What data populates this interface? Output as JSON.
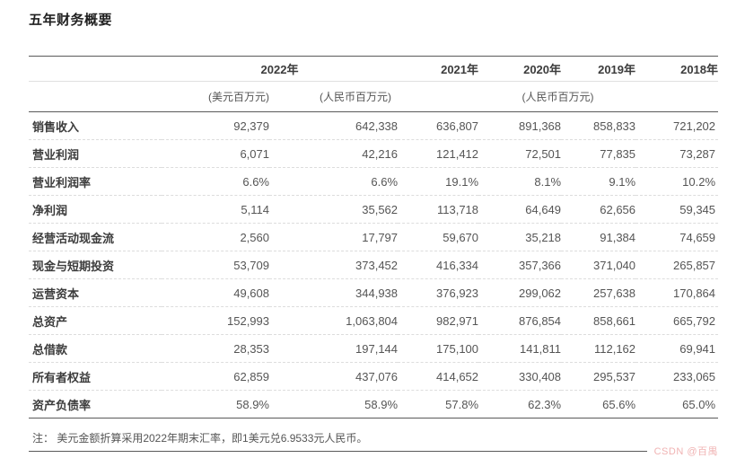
{
  "page": {
    "title": "五年财务概要"
  },
  "table": {
    "year_headers": [
      {
        "label": "2022年"
      },
      {
        "label": "2021年"
      },
      {
        "label": "2020年"
      },
      {
        "label": "2019年"
      },
      {
        "label": "2018年"
      }
    ],
    "unit_headers": {
      "usd": "(美元百万元)",
      "rmb_2022": "(人民币百万元)",
      "rmb_prior": "(人民币百万元)"
    },
    "rows": [
      {
        "label": "销售收入",
        "values": [
          "92,379",
          "642,338",
          "636,807",
          "891,368",
          "858,833",
          "721,202"
        ]
      },
      {
        "label": "营业利润",
        "values": [
          "6,071",
          "42,216",
          "121,412",
          "72,501",
          "77,835",
          "73,287"
        ]
      },
      {
        "label": "营业利润率",
        "values": [
          "6.6%",
          "6.6%",
          "19.1%",
          "8.1%",
          "9.1%",
          "10.2%"
        ]
      },
      {
        "label": "净利润",
        "values": [
          "5,114",
          "35,562",
          "113,718",
          "64,649",
          "62,656",
          "59,345"
        ]
      },
      {
        "label": "经营活动现金流",
        "values": [
          "2,560",
          "17,797",
          "59,670",
          "35,218",
          "91,384",
          "74,659"
        ]
      },
      {
        "label": "现金与短期投资",
        "values": [
          "53,709",
          "373,452",
          "416,334",
          "357,366",
          "371,040",
          "265,857"
        ]
      },
      {
        "label": "运营资本",
        "values": [
          "49,608",
          "344,938",
          "376,923",
          "299,062",
          "257,638",
          "170,864"
        ]
      },
      {
        "label": "总资产",
        "values": [
          "152,993",
          "1,063,804",
          "982,971",
          "876,854",
          "858,661",
          "665,792"
        ]
      },
      {
        "label": "总借款",
        "values": [
          "28,353",
          "197,144",
          "175,100",
          "141,811",
          "112,162",
          "69,941"
        ]
      },
      {
        "label": "所有者权益",
        "values": [
          "62,859",
          "437,076",
          "414,652",
          "330,408",
          "295,537",
          "233,065"
        ]
      },
      {
        "label": "资产负债率",
        "values": [
          "58.9%",
          "58.9%",
          "57.8%",
          "62.3%",
          "65.6%",
          "65.0%"
        ]
      }
    ]
  },
  "footnote": "注： 美元金额折算采用2022年期末汇率，即1美元兑6.9533元人民币。",
  "watermark": "CSDN @百禺",
  "colors": {
    "border_dark": "#5a5a5a",
    "border_light": "#e0e0e0",
    "separator_dashed": "#dddddd",
    "title_text": "#1f1f1f",
    "label_text": "#3c3c3c",
    "value_text": "#555555",
    "watermark_pink": "#f0b3b3"
  }
}
